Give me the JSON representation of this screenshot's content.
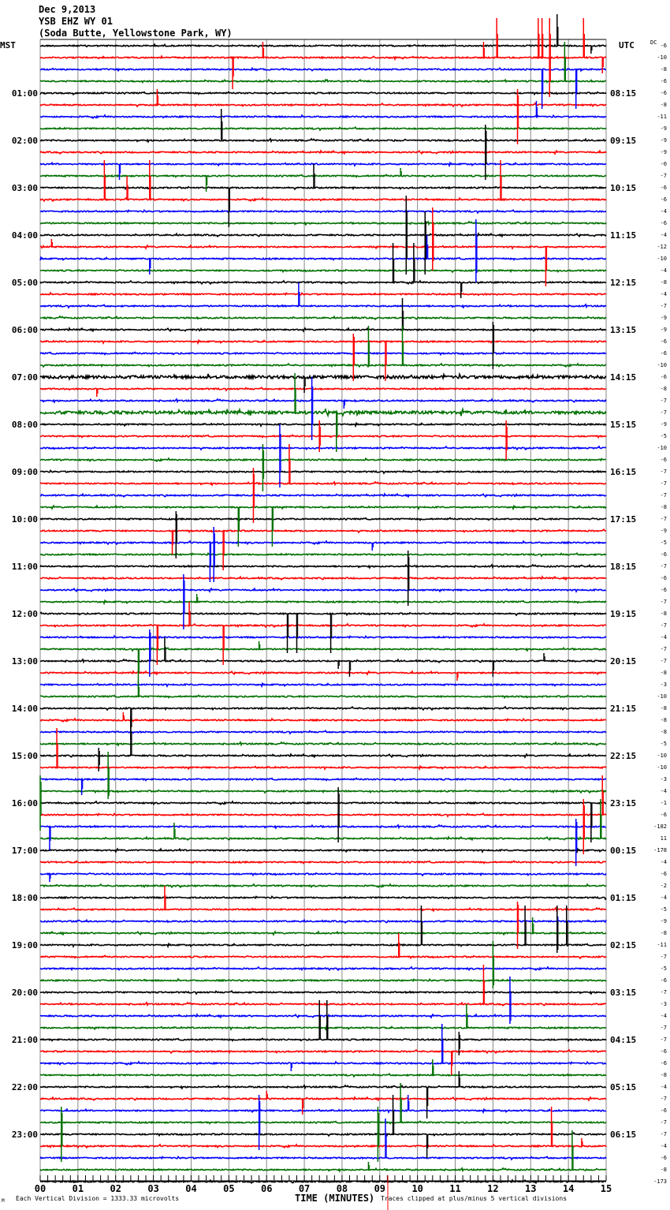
{
  "header": {
    "date": "Dec 9,2013",
    "station": "YSB EHZ WY 01",
    "location": "(Soda Butte, Yellowstone Park, WY)"
  },
  "left_axis_title": "MST",
  "right_axis_title": "UTC",
  "dc_title": "DC",
  "footer": {
    "corner_mark": "M",
    "division_note": "Each Vertical Division = 1333.33 microvolts",
    "xlabel": "TIME (MINUTES)",
    "clip_note": "Traces clipped at plus/minus 5 vertical divisions"
  },
  "chart_data": {
    "type": "line",
    "subtype": "helicorder",
    "title": "YSB EHZ WY 01",
    "xlabel": "TIME (MINUTES)",
    "xlim": [
      0,
      15
    ],
    "x_tick_labels": [
      "00",
      "01",
      "02",
      "03",
      "04",
      "05",
      "06",
      "07",
      "08",
      "09",
      "10",
      "11",
      "12",
      "13",
      "14",
      "15"
    ],
    "minutes_per_trace": 15,
    "clip_divisions": 5,
    "microvolts_per_division": 1333.33,
    "trace_colors": [
      "#000000",
      "#ff0000",
      "#0000ff",
      "#007000"
    ],
    "grid_color": "#888888",
    "mst_labels": [
      "",
      "01:00",
      "02:00",
      "03:00",
      "04:00",
      "05:00",
      "06:00",
      "07:00",
      "08:00",
      "09:00",
      "10:00",
      "11:00",
      "12:00",
      "13:00",
      "14:00",
      "15:00",
      "16:00",
      "17:00",
      "18:00",
      "19:00",
      "20:00",
      "21:00",
      "22:00",
      "23:00"
    ],
    "utc_labels": [
      "",
      "08:15",
      "09:15",
      "10:15",
      "11:15",
      "12:15",
      "13:15",
      "14:15",
      "15:15",
      "16:15",
      "17:15",
      "18:15",
      "19:15",
      "20:15",
      "21:15",
      "22:15",
      "23:15",
      "00:15",
      "01:15",
      "02:15",
      "03:15",
      "04:15",
      "05:15",
      "06:15"
    ],
    "dc_offsets": [
      "-6",
      "-10",
      "-8",
      "-6",
      "-6",
      "-8",
      "-11",
      "-9",
      "-9",
      "-9",
      "-0",
      "-7",
      "-6",
      "-6",
      "-4",
      "-6",
      "-4",
      "-12",
      "-10",
      "-4",
      "-8",
      "-4",
      "-7",
      "-9",
      "-9",
      "-6",
      "-6",
      "-10",
      "-6",
      "-8",
      "-7",
      "-7",
      "-9",
      "-5",
      "-10",
      "-6",
      "-7",
      "-7",
      "-7",
      "-8",
      "-7",
      "-9",
      "-5",
      "-6",
      "-7",
      "-6",
      "-6",
      "-7",
      "-8",
      "-7",
      "-4",
      "-7",
      "-7",
      "-8",
      "-3",
      "-10",
      "-8",
      "-8",
      "-8",
      "-5",
      "-10",
      "-10",
      "-3",
      "-4",
      "-1",
      "-6",
      "-182",
      "11",
      "-178",
      "-4",
      "-6",
      "-2",
      "-4",
      "-5",
      "-9",
      "-8",
      "-11",
      "-7",
      "-5",
      "-6",
      "-7",
      "-3",
      "-4",
      "-7",
      "-7",
      "-6",
      "-6",
      "-8",
      "-4",
      "-7",
      "-6",
      "-7",
      "-7",
      "-4",
      "-6",
      "-8",
      "-173"
    ],
    "events": [
      [
        0,
        14.6,
        0,
        1
      ],
      [
        0,
        13.7,
        4,
        0
      ],
      [
        1,
        5.1,
        0,
        4
      ],
      [
        1,
        5.9,
        2,
        0
      ],
      [
        1,
        12.1,
        5,
        0
      ],
      [
        1,
        11.75,
        2,
        0
      ],
      [
        1,
        13.2,
        5,
        0
      ],
      [
        1,
        13.3,
        5,
        0
      ],
      [
        1,
        13.5,
        5,
        5
      ],
      [
        1,
        14.4,
        5,
        0
      ],
      [
        1,
        14.9,
        0,
        2
      ],
      [
        2,
        13.3,
        0,
        5
      ],
      [
        2,
        14.2,
        0,
        5
      ],
      [
        3,
        13.9,
        5,
        0
      ],
      [
        5,
        3.1,
        2,
        0
      ],
      [
        5,
        12.65,
        2,
        5
      ],
      [
        6,
        13.15,
        2,
        0
      ],
      [
        8,
        4.8,
        4,
        0
      ],
      [
        8,
        11.8,
        2,
        5
      ],
      [
        10,
        2.1,
        0,
        2
      ],
      [
        11,
        4.4,
        0,
        2
      ],
      [
        11,
        9.55,
        1,
        0
      ],
      [
        12,
        7.25,
        3,
        0
      ],
      [
        12,
        5.0,
        0,
        5
      ],
      [
        13,
        1.7,
        5,
        0
      ],
      [
        13,
        2.9,
        5,
        0
      ],
      [
        13,
        2.3,
        3,
        0
      ],
      [
        13,
        12.2,
        5,
        0
      ],
      [
        16,
        9.7,
        5,
        5
      ],
      [
        16,
        10.2,
        3,
        5
      ],
      [
        17,
        10.4,
        5,
        3
      ],
      [
        17,
        0.3,
        1,
        0
      ],
      [
        17,
        13.4,
        0,
        5
      ],
      [
        18,
        2.9,
        0,
        2
      ],
      [
        18,
        10.25,
        3,
        0
      ],
      [
        18,
        11.55,
        5,
        3
      ],
      [
        20,
        9.35,
        5,
        0
      ],
      [
        20,
        9.9,
        5,
        0
      ],
      [
        20,
        11.15,
        0,
        2
      ],
      [
        22,
        6.85,
        3,
        0
      ],
      [
        24,
        12.0,
        1,
        5
      ],
      [
        24,
        9.6,
        4,
        0
      ],
      [
        25,
        8.3,
        1,
        5
      ],
      [
        25,
        9.15,
        0,
        5
      ],
      [
        27,
        8.7,
        5,
        0
      ],
      [
        27,
        9.6,
        5,
        0
      ],
      [
        28,
        7.0,
        0,
        2
      ],
      [
        29,
        1.5,
        0,
        1
      ],
      [
        30,
        7.2,
        3,
        5
      ],
      [
        30,
        8.05,
        0,
        1
      ],
      [
        31,
        7.85,
        0,
        5
      ],
      [
        31,
        6.75,
        5,
        0
      ],
      [
        33,
        7.4,
        2,
        2
      ],
      [
        33,
        12.35,
        2,
        3
      ],
      [
        34,
        6.35,
        3,
        5
      ],
      [
        35,
        5.9,
        2,
        4
      ],
      [
        37,
        5.65,
        2,
        5
      ],
      [
        37,
        6.6,
        5,
        0
      ],
      [
        39,
        5.25,
        0,
        5
      ],
      [
        39,
        6.15,
        0,
        5
      ],
      [
        40,
        3.6,
        1,
        5
      ],
      [
        41,
        3.5,
        0,
        3
      ],
      [
        41,
        4.85,
        0,
        5
      ],
      [
        42,
        4.5,
        0,
        5
      ],
      [
        42,
        4.6,
        2,
        5
      ],
      [
        42,
        8.8,
        0,
        1
      ],
      [
        44,
        9.75,
        2,
        5
      ],
      [
        46,
        3.8,
        2,
        5
      ],
      [
        47,
        4.15,
        1,
        0
      ],
      [
        48,
        6.55,
        0,
        5
      ],
      [
        48,
        7.7,
        0,
        5
      ],
      [
        48,
        6.8,
        0,
        5
      ],
      [
        49,
        3.95,
        3,
        0
      ],
      [
        49,
        4.85,
        0,
        5
      ],
      [
        49,
        3.1,
        0,
        5
      ],
      [
        50,
        2.9,
        1,
        5
      ],
      [
        51,
        2.6,
        0,
        5
      ],
      [
        51,
        5.8,
        1,
        0
      ],
      [
        52,
        3.3,
        3,
        0
      ],
      [
        52,
        7.9,
        0,
        1
      ],
      [
        52,
        8.2,
        0,
        2
      ],
      [
        52,
        12.0,
        0,
        2
      ],
      [
        52,
        13.35,
        1,
        0
      ],
      [
        53,
        11.05,
        0,
        1
      ],
      [
        55,
        2.6,
        2,
        0
      ],
      [
        56,
        2.4,
        0,
        4
      ],
      [
        57,
        2.2,
        1,
        0
      ],
      [
        60,
        1.55,
        1,
        2
      ],
      [
        60,
        2.4,
        5,
        0
      ],
      [
        61,
        0.44,
        5,
        0
      ],
      [
        62,
        1.1,
        0,
        2
      ],
      [
        63,
        0.0,
        2,
        5
      ],
      [
        63,
        1.8,
        5,
        1
      ],
      [
        64,
        7.9,
        2,
        5
      ],
      [
        64,
        14.6,
        0,
        5
      ],
      [
        65,
        14.4,
        2,
        5
      ],
      [
        65,
        14.9,
        5,
        0
      ],
      [
        66,
        0.25,
        0,
        3
      ],
      [
        66,
        14.2,
        1,
        5
      ],
      [
        67,
        3.55,
        2,
        0
      ],
      [
        67,
        14.85,
        5,
        0
      ],
      [
        70,
        0.25,
        0,
        1
      ],
      [
        73,
        3.3,
        3,
        0
      ],
      [
        73,
        12.65,
        1,
        5
      ],
      [
        74,
        13.7,
        1,
        1
      ],
      [
        75,
        13.05,
        2,
        0
      ],
      [
        76,
        12.85,
        5,
        0
      ],
      [
        76,
        10.1,
        5,
        0
      ],
      [
        76,
        13.7,
        5,
        1
      ],
      [
        76,
        13.95,
        5,
        0
      ],
      [
        77,
        9.5,
        3,
        0
      ],
      [
        79,
        12.0,
        5,
        1
      ],
      [
        81,
        11.75,
        5,
        0
      ],
      [
        82,
        12.45,
        5,
        1
      ],
      [
        83,
        11.3,
        3,
        0
      ],
      [
        84,
        7.4,
        5,
        0
      ],
      [
        84,
        7.6,
        5,
        0
      ],
      [
        84,
        11.1,
        1,
        2
      ],
      [
        85,
        10.9,
        0,
        3
      ],
      [
        86,
        10.65,
        5,
        0
      ],
      [
        86,
        6.65,
        0,
        1
      ],
      [
        87,
        10.4,
        2,
        0
      ],
      [
        88,
        10.25,
        0,
        4
      ],
      [
        88,
        11.1,
        2,
        0
      ],
      [
        89,
        6.0,
        1,
        0
      ],
      [
        89,
        6.95,
        0,
        2
      ],
      [
        90,
        5.8,
        2,
        5
      ],
      [
        90,
        9.75,
        2,
        0
      ],
      [
        91,
        9.55,
        5,
        0
      ],
      [
        91,
        8.95,
        2,
        5
      ],
      [
        91,
        0.56,
        2,
        5
      ],
      [
        92,
        9.35,
        5,
        0
      ],
      [
        92,
        10.25,
        0,
        3
      ],
      [
        93,
        13.55,
        5,
        0
      ],
      [
        93,
        14.35,
        1,
        0
      ],
      [
        94,
        9.15,
        5,
        0
      ],
      [
        95,
        14.1,
        5,
        0
      ],
      [
        95,
        8.7,
        1,
        0
      ]
    ]
  }
}
